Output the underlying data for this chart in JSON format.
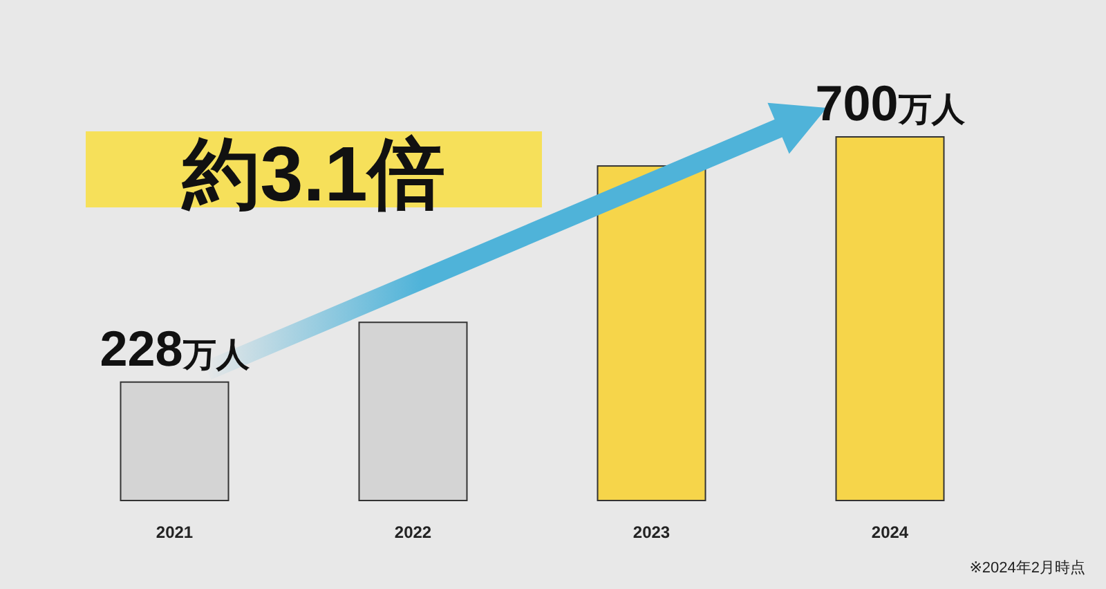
{
  "chart_data": {
    "type": "bar",
    "categories": [
      "2021",
      "2022",
      "2023",
      "2024"
    ],
    "values": [
      228,
      343,
      644,
      700
    ],
    "colors": [
      "#d4d4d4",
      "#d4d4d4",
      "#f6d54a",
      "#f6d54a"
    ],
    "value_labels": [
      "228万人",
      null,
      null,
      "700万人"
    ],
    "annotations": [
      "約3.1倍",
      "※2024年2月時点"
    ]
  }
}
